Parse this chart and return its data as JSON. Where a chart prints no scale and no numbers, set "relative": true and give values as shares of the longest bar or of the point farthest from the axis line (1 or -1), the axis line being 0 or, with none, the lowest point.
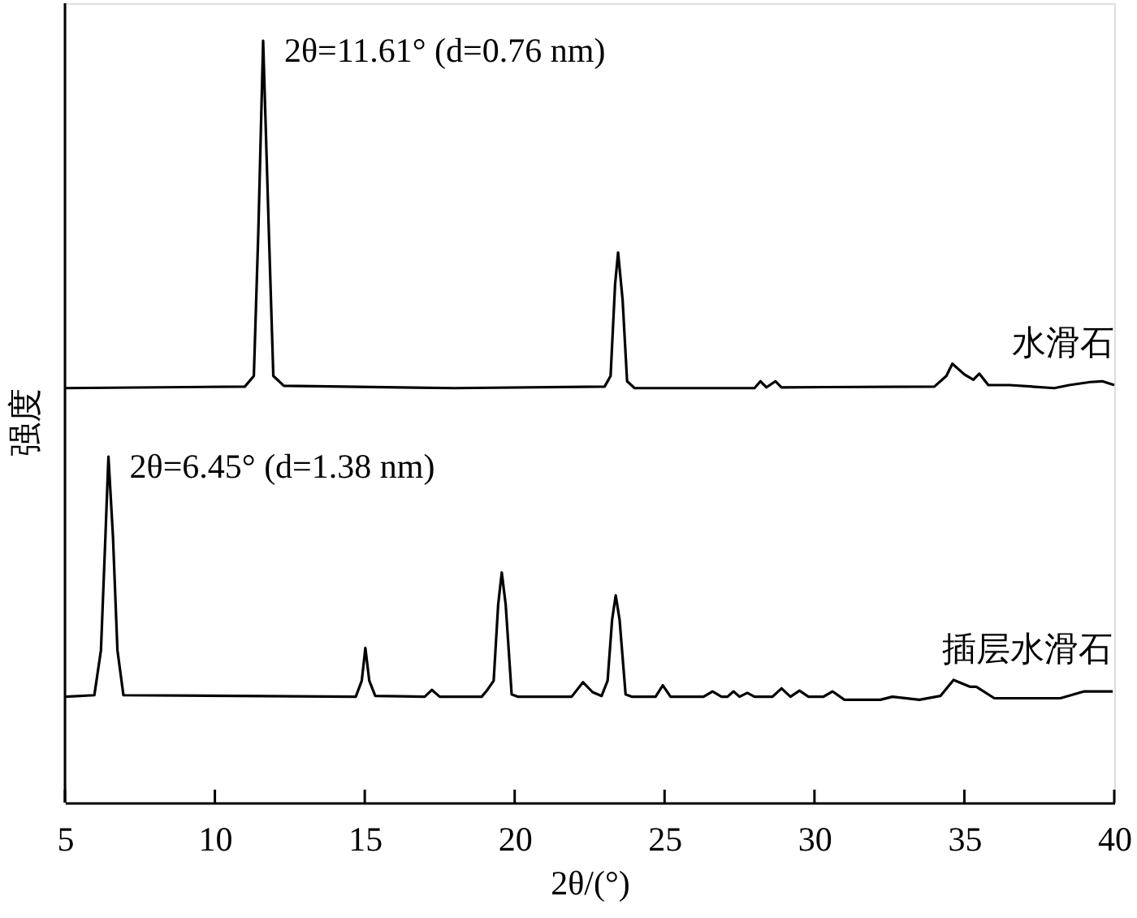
{
  "chart_data": {
    "type": "line",
    "xlabel": "2θ/(°)",
    "ylabel": "强度",
    "relative": true,
    "tick_labels": "x",
    "xlim": [
      5,
      40
    ],
    "xticks": [
      5,
      10,
      15,
      20,
      25,
      30,
      35,
      40
    ],
    "series": [
      {
        "name": "水滑石",
        "color": "#000000",
        "x": [
          5,
          11.0,
          11.3,
          11.45,
          11.61,
          11.8,
          11.95,
          12.3,
          18,
          23.0,
          23.2,
          23.35,
          23.45,
          23.6,
          23.75,
          24.0,
          28.0,
          28.2,
          28.4,
          28.7,
          28.9,
          34.0,
          34.4,
          34.6,
          35.0,
          35.3,
          35.5,
          35.8,
          36.5,
          38.0,
          38.5,
          39.2,
          39.6,
          40
        ],
        "values": [
          0.544,
          0.546,
          0.56,
          0.75,
          1.0,
          0.75,
          0.56,
          0.547,
          0.544,
          0.546,
          0.56,
          0.68,
          0.722,
          0.66,
          0.553,
          0.544,
          0.544,
          0.553,
          0.545,
          0.553,
          0.545,
          0.546,
          0.56,
          0.576,
          0.562,
          0.555,
          0.563,
          0.548,
          0.548,
          0.544,
          0.548,
          0.552,
          0.553,
          0.548
        ]
      },
      {
        "name": "插层水滑石",
        "color": "#000000",
        "x": [
          5,
          5.98,
          6.2,
          6.35,
          6.45,
          6.6,
          6.75,
          6.95,
          14.7,
          14.9,
          15.02,
          15.15,
          15.35,
          17.0,
          17.24,
          17.5,
          18.9,
          19.09,
          19.3,
          19.45,
          19.57,
          19.7,
          19.9,
          20.1,
          21.9,
          22.28,
          22.6,
          22.9,
          23.1,
          23.25,
          23.37,
          23.5,
          23.7,
          23.9,
          24.7,
          24.94,
          25.2,
          26.3,
          26.6,
          26.9,
          27.1,
          27.3,
          27.5,
          27.76,
          28.0,
          28.6,
          28.9,
          29.2,
          29.5,
          29.8,
          30.3,
          30.6,
          31.0,
          32.2,
          32.6,
          33.5,
          34.2,
          34.64,
          35.2,
          35.4,
          36.0,
          38.2,
          39.0,
          39.95
        ],
        "values": [
          0.139,
          0.141,
          0.2,
          0.35,
          0.454,
          0.35,
          0.2,
          0.141,
          0.139,
          0.16,
          0.203,
          0.16,
          0.14,
          0.139,
          0.148,
          0.139,
          0.139,
          0.148,
          0.16,
          0.26,
          0.302,
          0.26,
          0.142,
          0.139,
          0.139,
          0.158,
          0.145,
          0.14,
          0.16,
          0.24,
          0.272,
          0.24,
          0.142,
          0.139,
          0.139,
          0.154,
          0.139,
          0.139,
          0.146,
          0.139,
          0.139,
          0.146,
          0.139,
          0.144,
          0.139,
          0.139,
          0.15,
          0.139,
          0.147,
          0.139,
          0.139,
          0.146,
          0.135,
          0.135,
          0.139,
          0.135,
          0.14,
          0.161,
          0.152,
          0.152,
          0.137,
          0.137,
          0.146,
          0.146
        ]
      }
    ],
    "annotations": [
      {
        "text": "2θ=11.61° (d=0.76 nm)",
        "x": 11.61,
        "y": 1.0
      },
      {
        "text": "2θ=6.45° (d=1.38 nm)",
        "x": 6.45,
        "y": 0.454
      }
    ]
  }
}
